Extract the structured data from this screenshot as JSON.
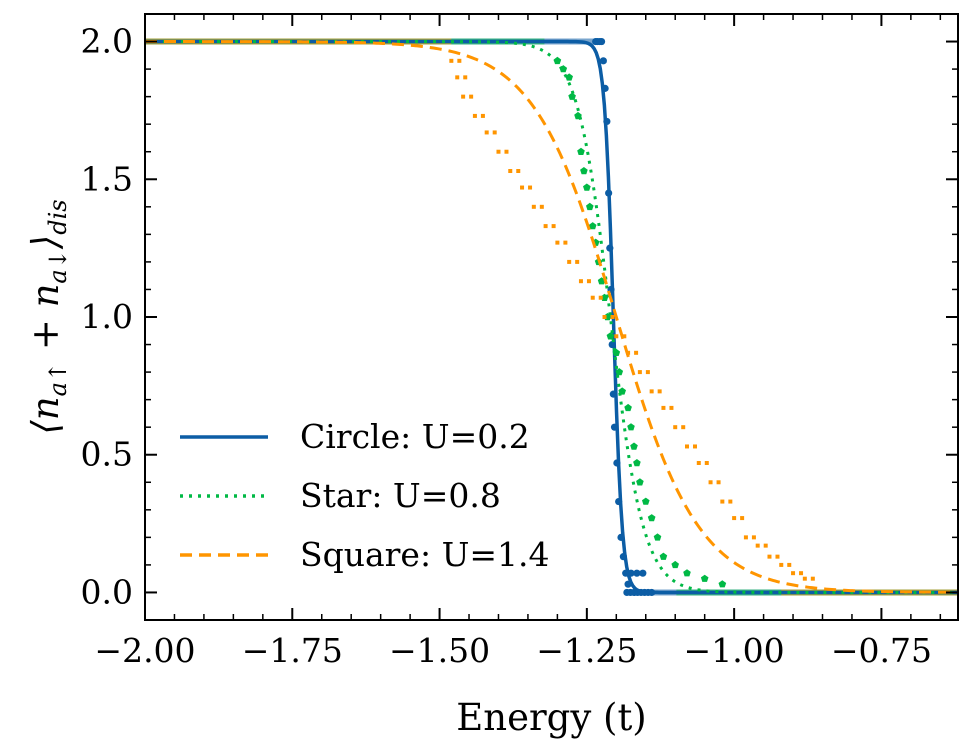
{
  "chart_data": {
    "type": "line",
    "title": "",
    "xlabel": "Energy (t)",
    "ylabel": "⟨n_{a↑} + n_{a↓}⟩_{dis}",
    "xlim": [
      -2.0,
      -0.62
    ],
    "ylim": [
      -0.1,
      2.1
    ],
    "xticks": [
      -2.0,
      -1.75,
      -1.5,
      -1.25,
      -1.0,
      -0.75
    ],
    "xtick_labels": [
      "−2.00",
      "−1.75",
      "−1.50",
      "−1.25",
      "−1.00",
      "−0.75"
    ],
    "yticks": [
      0.0,
      0.5,
      1.0,
      1.5,
      2.0
    ],
    "ytick_labels": [
      "0.0",
      "0.5",
      "1.0",
      "1.5",
      "2.0"
    ],
    "grid": false,
    "legend_position": "lower-left",
    "series": [
      {
        "name": "Circle: U=0.2",
        "color": "#0C5DA5",
        "line_style": "solid",
        "marker": "circle",
        "fermi": {
          "mu": -1.205,
          "kT": 0.0075
        },
        "points": [
          [
            -1.235,
            2.0
          ],
          [
            -1.232,
            2.0
          ],
          [
            -1.228,
            2.0
          ],
          [
            -1.225,
            2.0
          ],
          [
            -1.222,
            1.93
          ],
          [
            -1.219,
            1.83
          ],
          [
            -1.216,
            1.71
          ],
          [
            -1.213,
            1.45
          ],
          [
            -1.211,
            1.25
          ],
          [
            -1.209,
            1.1
          ],
          [
            -1.207,
            0.9
          ],
          [
            -1.205,
            0.72
          ],
          [
            -1.203,
            0.6
          ],
          [
            -1.199,
            0.47
          ],
          [
            -1.196,
            0.33
          ],
          [
            -1.192,
            0.2
          ],
          [
            -1.188,
            0.13
          ],
          [
            -1.184,
            0.07
          ],
          [
            -1.18,
            0.03
          ],
          [
            -1.175,
            0.07
          ],
          [
            -1.165,
            0.07
          ],
          [
            -1.155,
            0.07
          ],
          [
            -1.182,
            0.0
          ],
          [
            -1.176,
            0.0
          ],
          [
            -1.17,
            0.0
          ],
          [
            -1.164,
            0.0
          ],
          [
            -1.158,
            0.0
          ],
          [
            -1.152,
            0.0
          ],
          [
            -1.146,
            0.0
          ],
          [
            -1.14,
            0.0
          ]
        ]
      },
      {
        "name": "Star: U=0.8",
        "color": "#00B945",
        "line_style": "dotted",
        "marker": "pentagon",
        "fermi": {
          "mu": -1.21,
          "kT": 0.028
        },
        "points": [
          [
            -1.3,
            1.93
          ],
          [
            -1.29,
            1.9
          ],
          [
            -1.28,
            1.87
          ],
          [
            -1.275,
            1.8
          ],
          [
            -1.265,
            1.73
          ],
          [
            -1.26,
            1.6
          ],
          [
            -1.255,
            1.53
          ],
          [
            -1.25,
            1.47
          ],
          [
            -1.245,
            1.4
          ],
          [
            -1.24,
            1.33
          ],
          [
            -1.235,
            1.27
          ],
          [
            -1.23,
            1.2
          ],
          [
            -1.225,
            1.13
          ],
          [
            -1.22,
            1.07
          ],
          [
            -1.215,
            1.0
          ],
          [
            -1.21,
            0.93
          ],
          [
            -1.2,
            0.87
          ],
          [
            -1.195,
            0.8
          ],
          [
            -1.19,
            0.73
          ],
          [
            -1.18,
            0.67
          ],
          [
            -1.175,
            0.6
          ],
          [
            -1.17,
            0.53
          ],
          [
            -1.165,
            0.47
          ],
          [
            -1.16,
            0.4
          ],
          [
            -1.15,
            0.33
          ],
          [
            -1.14,
            0.27
          ],
          [
            -1.13,
            0.2
          ],
          [
            -1.12,
            0.13
          ],
          [
            -1.1,
            0.1
          ],
          [
            -1.08,
            0.07
          ],
          [
            -1.05,
            0.05
          ],
          [
            -1.02,
            0.03
          ]
        ]
      },
      {
        "name": "Square: U=1.4",
        "color": "#FF9500",
        "line_style": "dashed",
        "marker": "square",
        "fermi": {
          "mu": -1.2,
          "kT": 0.07
        },
        "points": [
          [
            -1.48,
            1.93
          ],
          [
            -1.47,
            1.87
          ],
          [
            -1.46,
            1.8
          ],
          [
            -1.44,
            1.73
          ],
          [
            -1.42,
            1.67
          ],
          [
            -1.4,
            1.6
          ],
          [
            -1.38,
            1.53
          ],
          [
            -1.36,
            1.47
          ],
          [
            -1.34,
            1.4
          ],
          [
            -1.32,
            1.33
          ],
          [
            -1.3,
            1.27
          ],
          [
            -1.28,
            1.2
          ],
          [
            -1.26,
            1.13
          ],
          [
            -1.24,
            1.07
          ],
          [
            -1.22,
            1.0
          ],
          [
            -1.2,
            0.93
          ],
          [
            -1.18,
            0.87
          ],
          [
            -1.16,
            0.8
          ],
          [
            -1.14,
            0.73
          ],
          [
            -1.12,
            0.67
          ],
          [
            -1.1,
            0.6
          ],
          [
            -1.08,
            0.53
          ],
          [
            -1.06,
            0.47
          ],
          [
            -1.04,
            0.4
          ],
          [
            -1.02,
            0.33
          ],
          [
            -1.0,
            0.27
          ],
          [
            -0.98,
            0.2
          ],
          [
            -0.96,
            0.17
          ],
          [
            -0.94,
            0.13
          ],
          [
            -0.92,
            0.1
          ],
          [
            -0.9,
            0.07
          ],
          [
            -0.88,
            0.05
          ]
        ]
      }
    ]
  }
}
